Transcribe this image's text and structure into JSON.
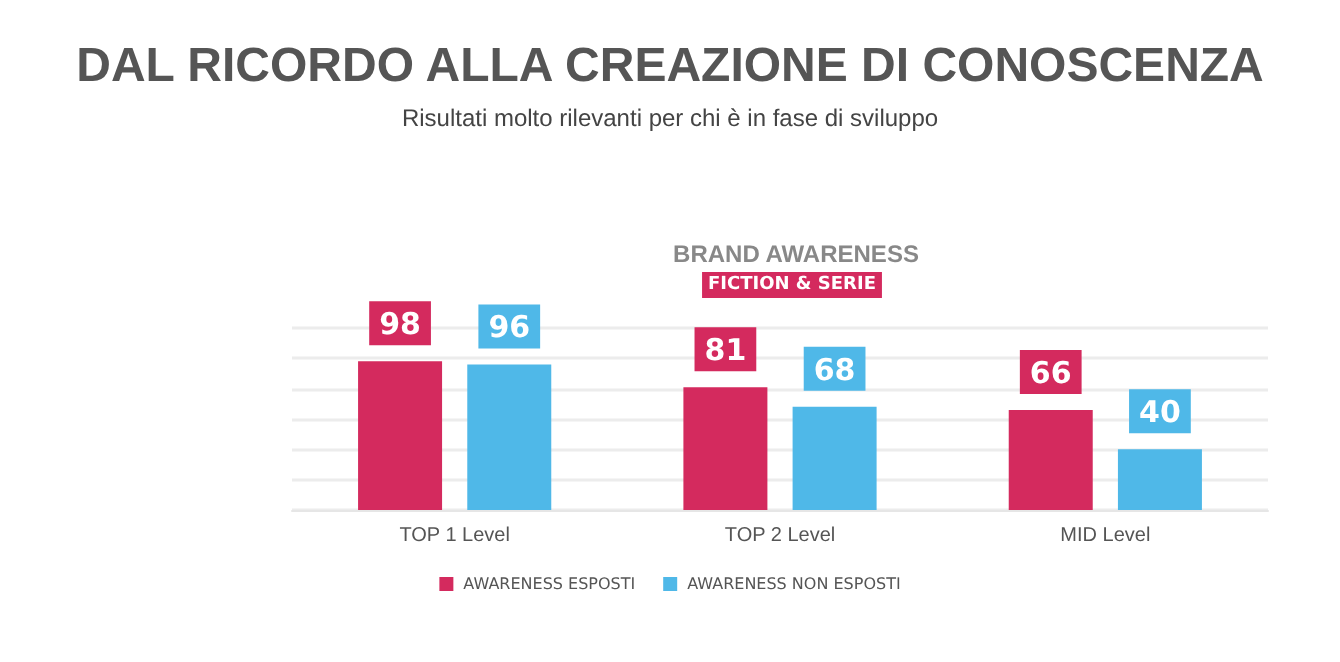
{
  "chart_data": {
    "type": "bar",
    "title": "DAL RICORDO ALLA CREAZIONE DI CONOSCENZA",
    "subtitle": "Risultati molto rilevanti per chi è in fase di sviluppo",
    "annotations": [
      "BRAND AWARENESS",
      "FICTION & SERIE"
    ],
    "categories": [
      "TOP 1 Level",
      "TOP 2 Level",
      "MID Level"
    ],
    "series": [
      {
        "name": "AWARENESS ESPOSTI",
        "color": "#d42a5e",
        "values": [
          98,
          81,
          66
        ]
      },
      {
        "name": "AWARENESS NON ESPOSTI",
        "color": "#4fb8e8",
        "values": [
          96,
          68,
          40
        ]
      }
    ],
    "ylim": [
      0,
      120
    ],
    "yticks": [
      {
        "value": 0,
        "label": null
      },
      {
        "value": 20,
        "label": null
      },
      {
        "value": 40,
        "label": null
      },
      {
        "value": 60,
        "label": null
      },
      {
        "value": 80,
        "label": null
      },
      {
        "value": 100,
        "label": null
      },
      {
        "value": 120,
        "label": null
      }
    ],
    "tick_labels": "x",
    "grid": "y",
    "legend": "bottom",
    "data_labels": true
  }
}
